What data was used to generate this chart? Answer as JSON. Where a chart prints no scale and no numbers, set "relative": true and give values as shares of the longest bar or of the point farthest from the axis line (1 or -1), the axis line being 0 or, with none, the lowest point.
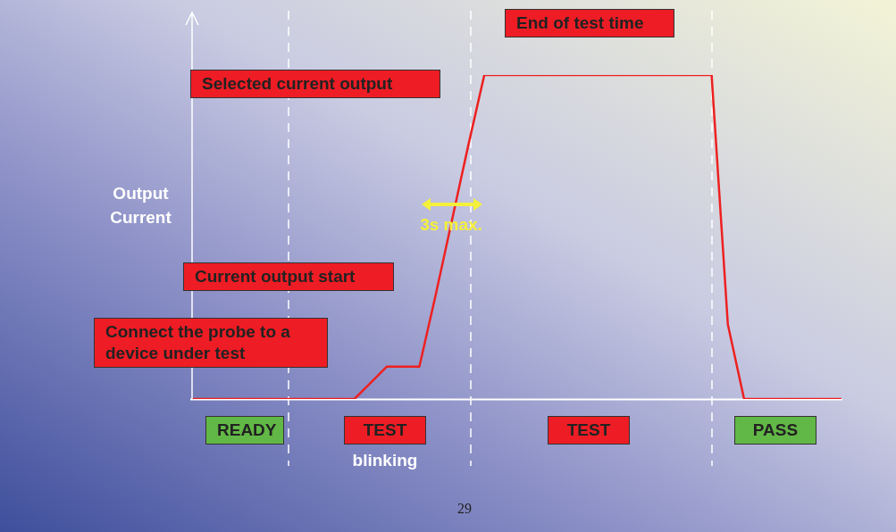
{
  "chart_data": {
    "type": "line",
    "relative": true,
    "ylabel": "Output Current",
    "categories": [
      null,
      null,
      null,
      null,
      null,
      null,
      null,
      null,
      null,
      null,
      null,
      null,
      null,
      null,
      null,
      null,
      null,
      null,
      null,
      null,
      null,
      null,
      null,
      null,
      null,
      null,
      null,
      null,
      null,
      null,
      null,
      null,
      null,
      null,
      null,
      null,
      null,
      null,
      null,
      null,
      null
    ],
    "series": [
      {
        "color": "#ee2020",
        "values": [
          0,
          0,
          0,
          0,
          0,
          0,
          0,
          0,
          0,
          0,
          0,
          0.05,
          0.1,
          0.1,
          0.1,
          0.32,
          0.55,
          0.78,
          1,
          1,
          1,
          1,
          1,
          1,
          1,
          1,
          1,
          1,
          1,
          1,
          1,
          1,
          1,
          0.23,
          0,
          0,
          0,
          0,
          0,
          0,
          0
        ]
      }
    ],
    "annotations": [
      "Selected current output",
      "End of test time",
      "Current output start",
      "Connect the probe to a device under test",
      "3s max.",
      "READY",
      "TEST",
      "blinking",
      "TEST",
      "PASS",
      "29"
    ],
    "marker": "none",
    "line_style": "solid"
  }
}
